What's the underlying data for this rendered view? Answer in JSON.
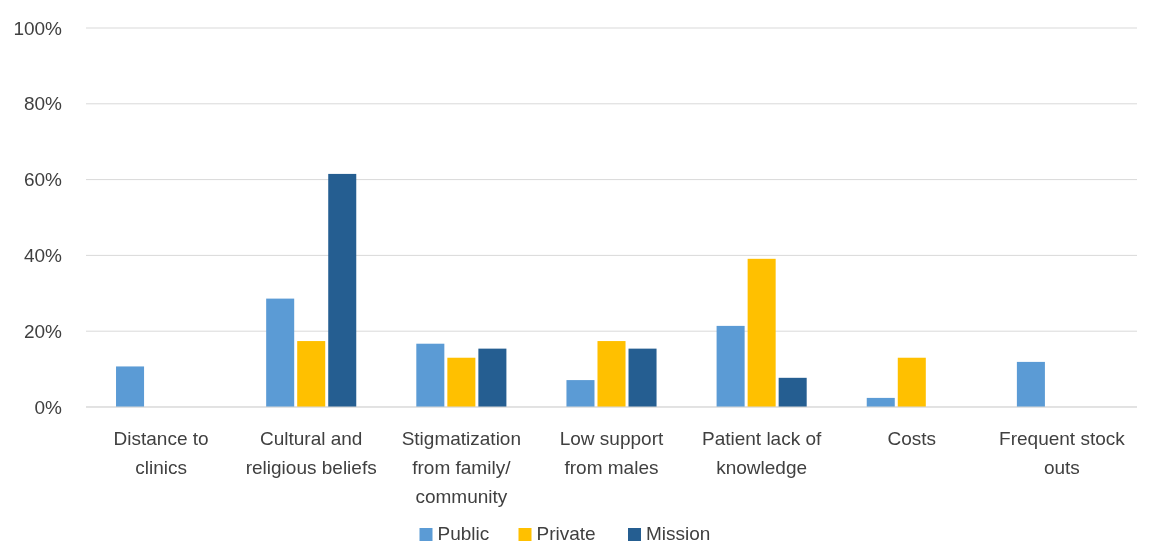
{
  "chart_data": {
    "type": "bar",
    "categories": [
      "Distance to clinics",
      "Cultural and religious beliefs",
      "Stigmatization from family/ community",
      "Low support from males",
      "Patient lack of knowledge",
      "Costs",
      "Frequent stock outs"
    ],
    "series": [
      {
        "name": "Public",
        "color": "#5b9bd5",
        "values": [
          10.7,
          28.6,
          16.7,
          7.1,
          21.4,
          2.4,
          11.9
        ]
      },
      {
        "name": "Private",
        "color": "#ffc000",
        "values": [
          0,
          17.4,
          13.0,
          17.4,
          39.1,
          13.0,
          0
        ]
      },
      {
        "name": "Mission",
        "color": "#255e91",
        "values": [
          0,
          61.5,
          15.4,
          15.4,
          7.7,
          0,
          0
        ]
      }
    ],
    "ylim": [
      0,
      100
    ],
    "yticks": [
      {
        "value": 0,
        "label": "0%"
      },
      {
        "value": 20,
        "label": "20%"
      },
      {
        "value": 40,
        "label": "40%"
      },
      {
        "value": 60,
        "label": "60%"
      },
      {
        "value": 80,
        "label": "80%"
      },
      {
        "value": 100,
        "label": "100%"
      }
    ],
    "grid": "y",
    "legend": "bottom"
  }
}
